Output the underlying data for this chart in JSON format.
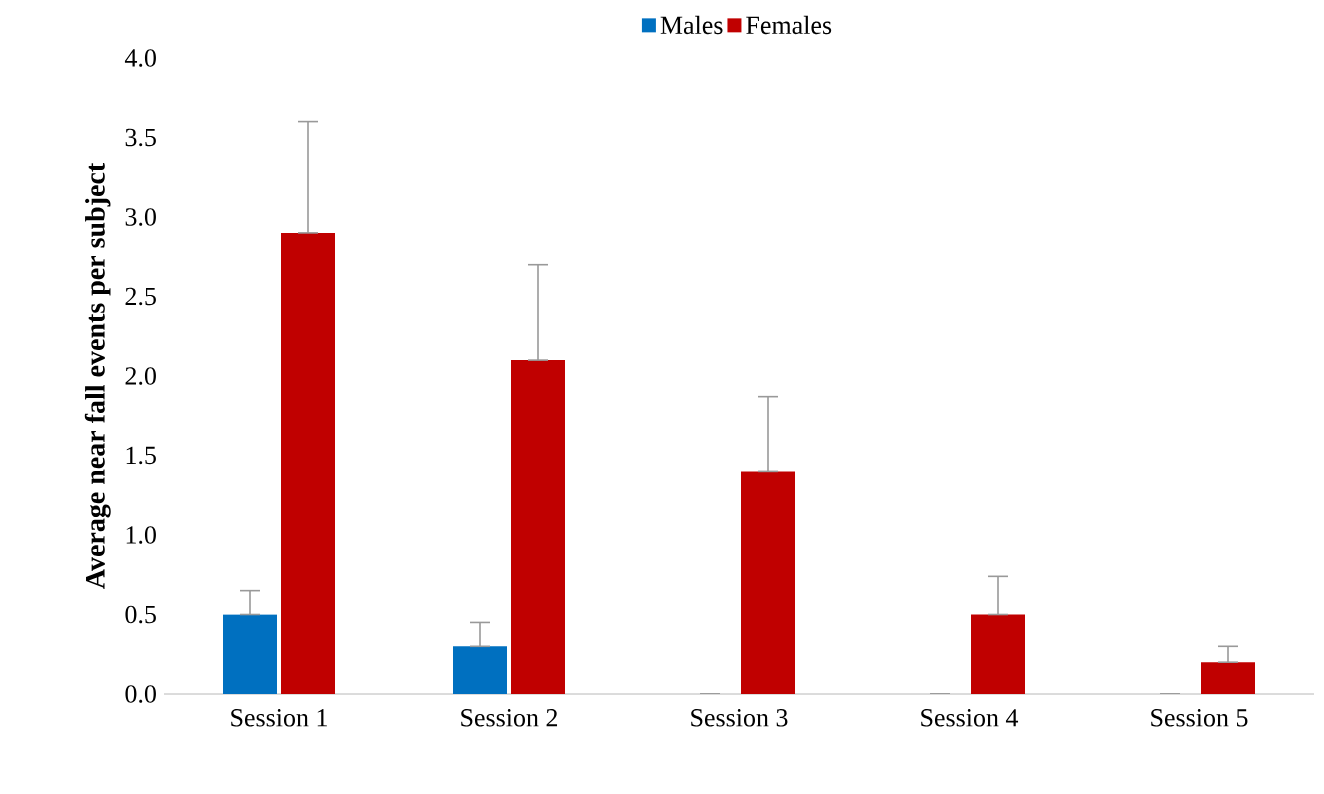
{
  "chart_data": {
    "type": "bar",
    "ylabel": "Average near fall events per subject",
    "categories": [
      "Session 1",
      "Session 2",
      "Session 3",
      "Session 4",
      "Session 5"
    ],
    "series": [
      {
        "name": "Males",
        "color": "#0070c0",
        "values": [
          0.5,
          0.3,
          0,
          0,
          0
        ],
        "errors": [
          [
            0.5,
            0.65
          ],
          [
            0.3,
            0.45
          ],
          null,
          null,
          null
        ]
      },
      {
        "name": "Females",
        "color": "#c00000",
        "values": [
          2.9,
          2.1,
          1.4,
          0.5,
          0.2
        ],
        "errors": [
          [
            2.9,
            3.6
          ],
          [
            2.1,
            2.7
          ],
          [
            1.4,
            1.87
          ],
          [
            0.5,
            0.74
          ],
          [
            0.2,
            0.3
          ]
        ]
      }
    ],
    "ylim": [
      0,
      4
    ],
    "yticks": [
      {
        "value": 0,
        "label": "0.0"
      },
      {
        "value": 0.5,
        "label": "0.5"
      },
      {
        "value": 1,
        "label": "1.0"
      },
      {
        "value": 1.5,
        "label": "1.5"
      },
      {
        "value": 2,
        "label": "2.0"
      },
      {
        "value": 2.5,
        "label": "2.5"
      },
      {
        "value": 3,
        "label": "3.0"
      },
      {
        "value": 3.5,
        "label": "3.5"
      },
      {
        "value": 4,
        "label": "4.0"
      }
    ],
    "grid": false,
    "legend": "top"
  }
}
